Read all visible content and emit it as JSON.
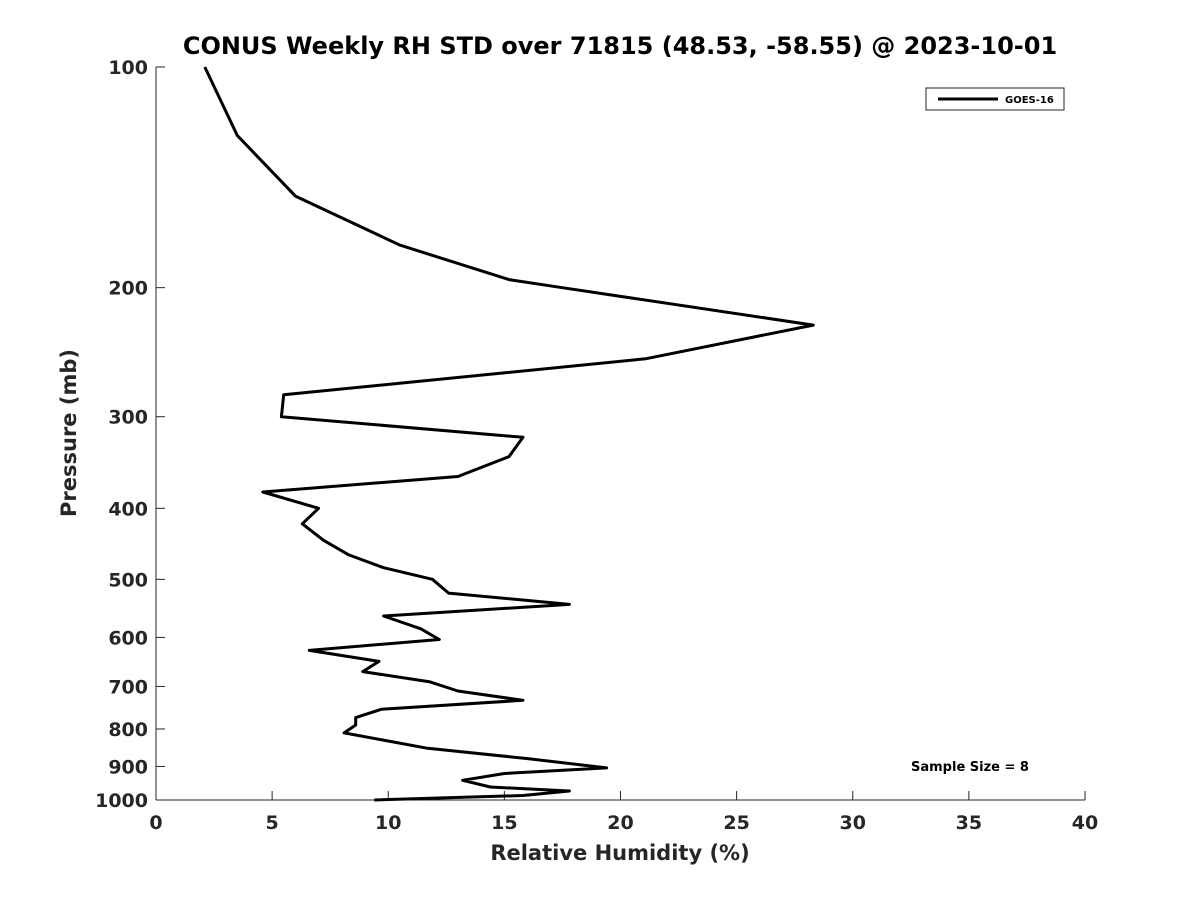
{
  "chart_data": {
    "type": "line",
    "title": "CONUS Weekly RH STD over 71815 (48.53, -58.55) @ 2023-10-01",
    "xlabel": "Relative Humidity (%)",
    "ylabel": "Pressure (mb)",
    "xlim": [
      0,
      40
    ],
    "ylim": [
      100,
      1000
    ],
    "y_scale": "log",
    "y_reversed": true,
    "x_ticks": [
      0,
      5,
      10,
      15,
      20,
      25,
      30,
      35,
      40
    ],
    "y_ticks": [
      100,
      200,
      300,
      400,
      500,
      600,
      700,
      800,
      900,
      1000
    ],
    "grid": false,
    "legend_position": "top-right",
    "annotation": "Sample Size = 8",
    "series": [
      {
        "name": "GOES-16",
        "color": "#000000",
        "points": [
          [
            2.1,
            100
          ],
          [
            3.5,
            124
          ],
          [
            6.0,
            150
          ],
          [
            10.5,
            175
          ],
          [
            15.2,
            195
          ],
          [
            17.5,
            200
          ],
          [
            28.3,
            225
          ],
          [
            21.1,
            250
          ],
          [
            5.5,
            280
          ],
          [
            5.4,
            300
          ],
          [
            15.8,
            320
          ],
          [
            15.2,
            340
          ],
          [
            13.0,
            362
          ],
          [
            4.6,
            380
          ],
          [
            7.0,
            400
          ],
          [
            6.3,
            420
          ],
          [
            7.2,
            442
          ],
          [
            8.3,
            463
          ],
          [
            9.8,
            482
          ],
          [
            11.9,
            500
          ],
          [
            12.6,
            522
          ],
          [
            17.8,
            541
          ],
          [
            9.8,
            561
          ],
          [
            11.4,
            584
          ],
          [
            12.2,
            604
          ],
          [
            6.6,
            625
          ],
          [
            9.6,
            647
          ],
          [
            8.9,
            668
          ],
          [
            11.8,
            690
          ],
          [
            13.0,
            710
          ],
          [
            15.8,
            731
          ],
          [
            9.7,
            752
          ],
          [
            8.6,
            772
          ],
          [
            8.6,
            790
          ],
          [
            8.1,
            810
          ],
          [
            11.7,
            850
          ],
          [
            16.0,
            878
          ],
          [
            19.4,
            904
          ],
          [
            15.0,
            920
          ],
          [
            13.2,
            940
          ],
          [
            14.4,
            960
          ],
          [
            17.8,
            972
          ],
          [
            15.8,
            986
          ],
          [
            9.4,
            1000
          ]
        ]
      }
    ]
  }
}
